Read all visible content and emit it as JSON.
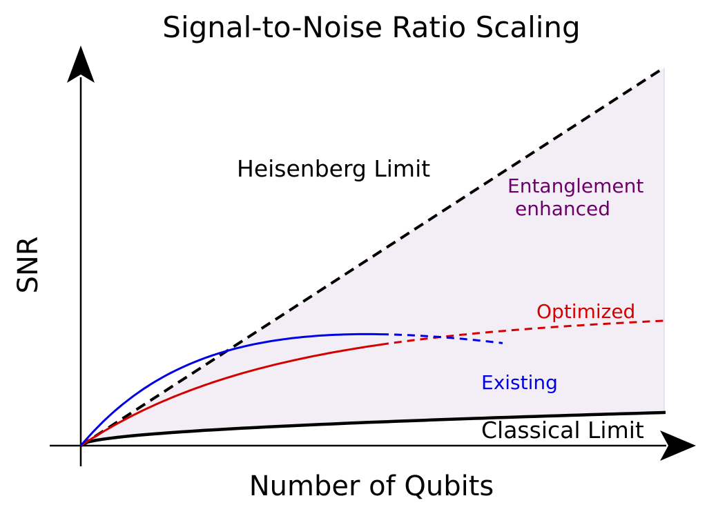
{
  "figure": {
    "title": "Signal-to-Noise Ratio Scaling",
    "xlabel": "Number of Qubits",
    "ylabel": "SNR",
    "labels": {
      "heisenberg": "Heisenberg Limit",
      "entanglement_line1": "Entanglement",
      "entanglement_line2": "enhanced",
      "optimized": "Optimized",
      "existing": "Existing",
      "classical": "Classical Limit"
    }
  },
  "colors": {
    "heisenberg": "#000000",
    "classical": "#000000",
    "optimized": "#d40000",
    "existing": "#0000e6",
    "entanglement_label": "#6b006b",
    "region_fill": "#f3eef5"
  },
  "curves": {
    "heisenberg": {
      "style": "dashed",
      "shape": "linear"
    },
    "classical": {
      "style": "solid",
      "shape": "sqrt"
    },
    "optimized": {
      "style": "solid then dashed",
      "shape": "saturating growth"
    },
    "existing": {
      "style": "solid then dashed",
      "shape": "rise then fall"
    }
  },
  "region": {
    "label": "Entanglement enhanced",
    "between": [
      "classical",
      "heisenberg"
    ]
  }
}
